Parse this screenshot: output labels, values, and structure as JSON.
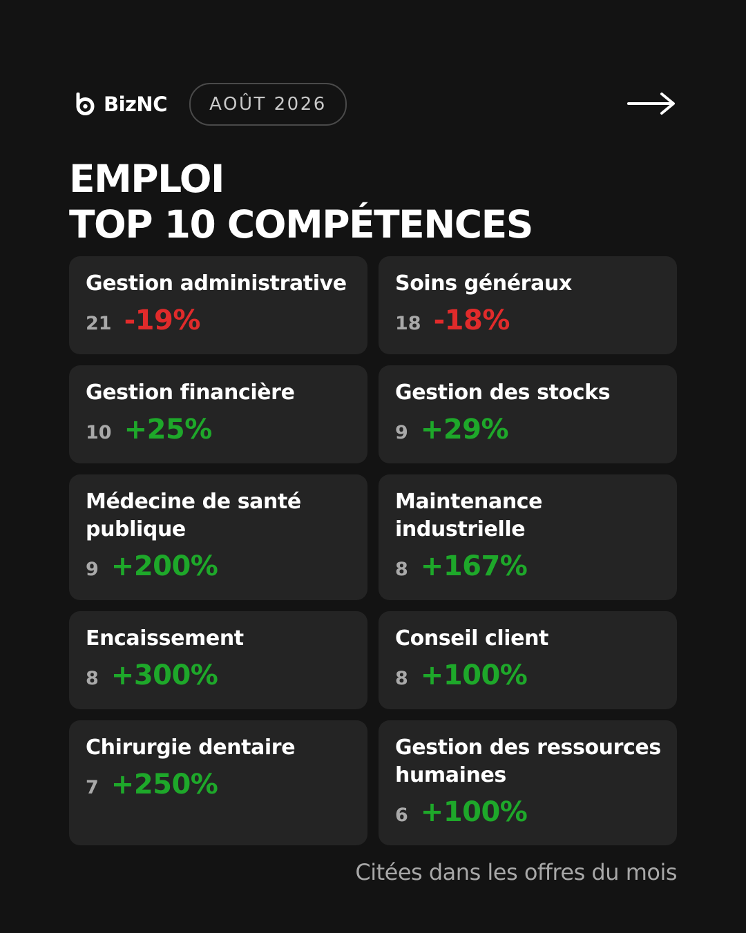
{
  "brand": {
    "name": "BizNC",
    "logo_icon": "biznc-logo-icon"
  },
  "date_badge": "AOÛT 2026",
  "next_icon": "arrow-right-icon",
  "title": {
    "line1": "EMPLOI",
    "line2": "TOP 10 COMPÉTENCES"
  },
  "colors": {
    "background": "#131313",
    "card": "#242424",
    "negative": "#e12b2b",
    "positive": "#1ea82a"
  },
  "skills": [
    {
      "name": "Gestion administrative",
      "count": "21",
      "change": "-19%",
      "trend": "down"
    },
    {
      "name": "Soins généraux",
      "count": "18",
      "change": "-18%",
      "trend": "down"
    },
    {
      "name": "Gestion financière",
      "count": "10",
      "change": "+25%",
      "trend": "up"
    },
    {
      "name": "Gestion des stocks",
      "count": "9",
      "change": "+29%",
      "trend": "up"
    },
    {
      "name": "Médecine de santé publique",
      "count": "9",
      "change": "+200%",
      "trend": "up"
    },
    {
      "name": "Maintenance industrielle",
      "count": "8",
      "change": "+167%",
      "trend": "up"
    },
    {
      "name": "Encaissement",
      "count": "8",
      "change": "+300%",
      "trend": "up"
    },
    {
      "name": "Conseil client",
      "count": "8",
      "change": "+100%",
      "trend": "up"
    },
    {
      "name": "Chirurgie dentaire",
      "count": "7",
      "change": "+250%",
      "trend": "up"
    },
    {
      "name": "Gestion des ressources humaines",
      "count": "6",
      "change": "+100%",
      "trend": "up"
    }
  ],
  "footnote": "Citées dans les offres du mois"
}
